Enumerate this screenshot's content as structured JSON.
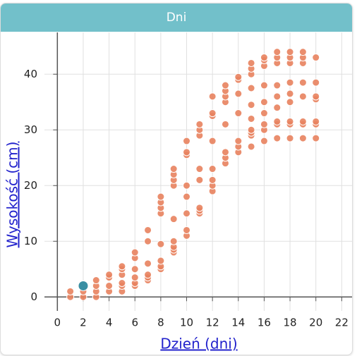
{
  "chart_data": {
    "type": "scatter",
    "title": "Dni",
    "xlabel": "Dzień (dni)",
    "ylabel": "Wysokość (cm)",
    "x": [
      1,
      1,
      2,
      2,
      3,
      3,
      3,
      3,
      4,
      4,
      4,
      4,
      5,
      5,
      5,
      5,
      5,
      5,
      6,
      6,
      6,
      6,
      6,
      6,
      7,
      7,
      7,
      7,
      7,
      7,
      8,
      8,
      8,
      8,
      8,
      8,
      8,
      8,
      9,
      9,
      9,
      9,
      9,
      9,
      9,
      9,
      9,
      10,
      10,
      10,
      10,
      10,
      10,
      10,
      10,
      11,
      11,
      11,
      11,
      11,
      11,
      11,
      11,
      12,
      12,
      12,
      12,
      12,
      12,
      12,
      12,
      13,
      13,
      13,
      13,
      13,
      13,
      13,
      13,
      14,
      14,
      14,
      14,
      14,
      14,
      14,
      15,
      15,
      15,
      15,
      15,
      15,
      15,
      15,
      15,
      15,
      16,
      16,
      16,
      16,
      16,
      16,
      16,
      16,
      16,
      17,
      17,
      17,
      17,
      17,
      17,
      17,
      17,
      17,
      18,
      18,
      18,
      18,
      18,
      18,
      18,
      18,
      18,
      19,
      19,
      19,
      19,
      19,
      19,
      19,
      19,
      20,
      20,
      20,
      20,
      20,
      20,
      20
    ],
    "values": [
      0,
      1,
      0,
      1,
      0,
      1,
      2,
      3,
      1,
      2,
      3.5,
      4,
      1,
      2,
      2.5,
      4,
      5,
      5.5,
      2,
      2.5,
      3.5,
      5,
      7,
      8,
      3,
      3.5,
      4,
      6,
      10,
      12,
      5,
      5.5,
      6.5,
      9.5,
      15,
      16,
      17,
      18,
      8,
      8.5,
      9,
      10,
      14,
      20,
      21,
      22,
      23,
      11,
      12,
      15,
      18,
      20,
      25.5,
      26,
      28,
      15,
      15.5,
      16,
      21,
      23,
      29,
      30,
      31,
      19,
      20,
      21,
      23,
      28,
      32.5,
      33,
      36,
      24,
      25,
      26,
      31,
      35,
      36,
      37,
      38,
      26,
      27,
      28,
      33,
      36.5,
      39,
      39.5,
      27,
      29,
      29.5,
      30,
      32,
      34.5,
      37.5,
      40,
      41,
      42,
      28,
      30,
      31,
      33,
      35,
      38,
      41.5,
      42.5,
      43,
      28.5,
      31,
      31.5,
      34,
      36,
      38,
      42,
      43,
      44,
      28.5,
      31,
      31.5,
      35,
      36.5,
      38.5,
      42,
      43,
      44,
      28.5,
      31,
      31.5,
      36,
      38.5,
      42,
      43,
      44,
      28.5,
      31,
      31.5,
      35.5,
      36,
      38.5,
      43
    ],
    "color": "#e8825e",
    "highlight": {
      "x": 2,
      "y": 2,
      "color": "#3a8fa3"
    },
    "xlim": [
      -1,
      22.8
    ],
    "ylim": [
      -2.5,
      47.5
    ],
    "xticks": [
      0,
      2,
      4,
      6,
      8,
      10,
      12,
      14,
      16,
      18,
      20,
      22
    ],
    "yticks": [
      0,
      10,
      20,
      30,
      40
    ],
    "grid": true
  }
}
